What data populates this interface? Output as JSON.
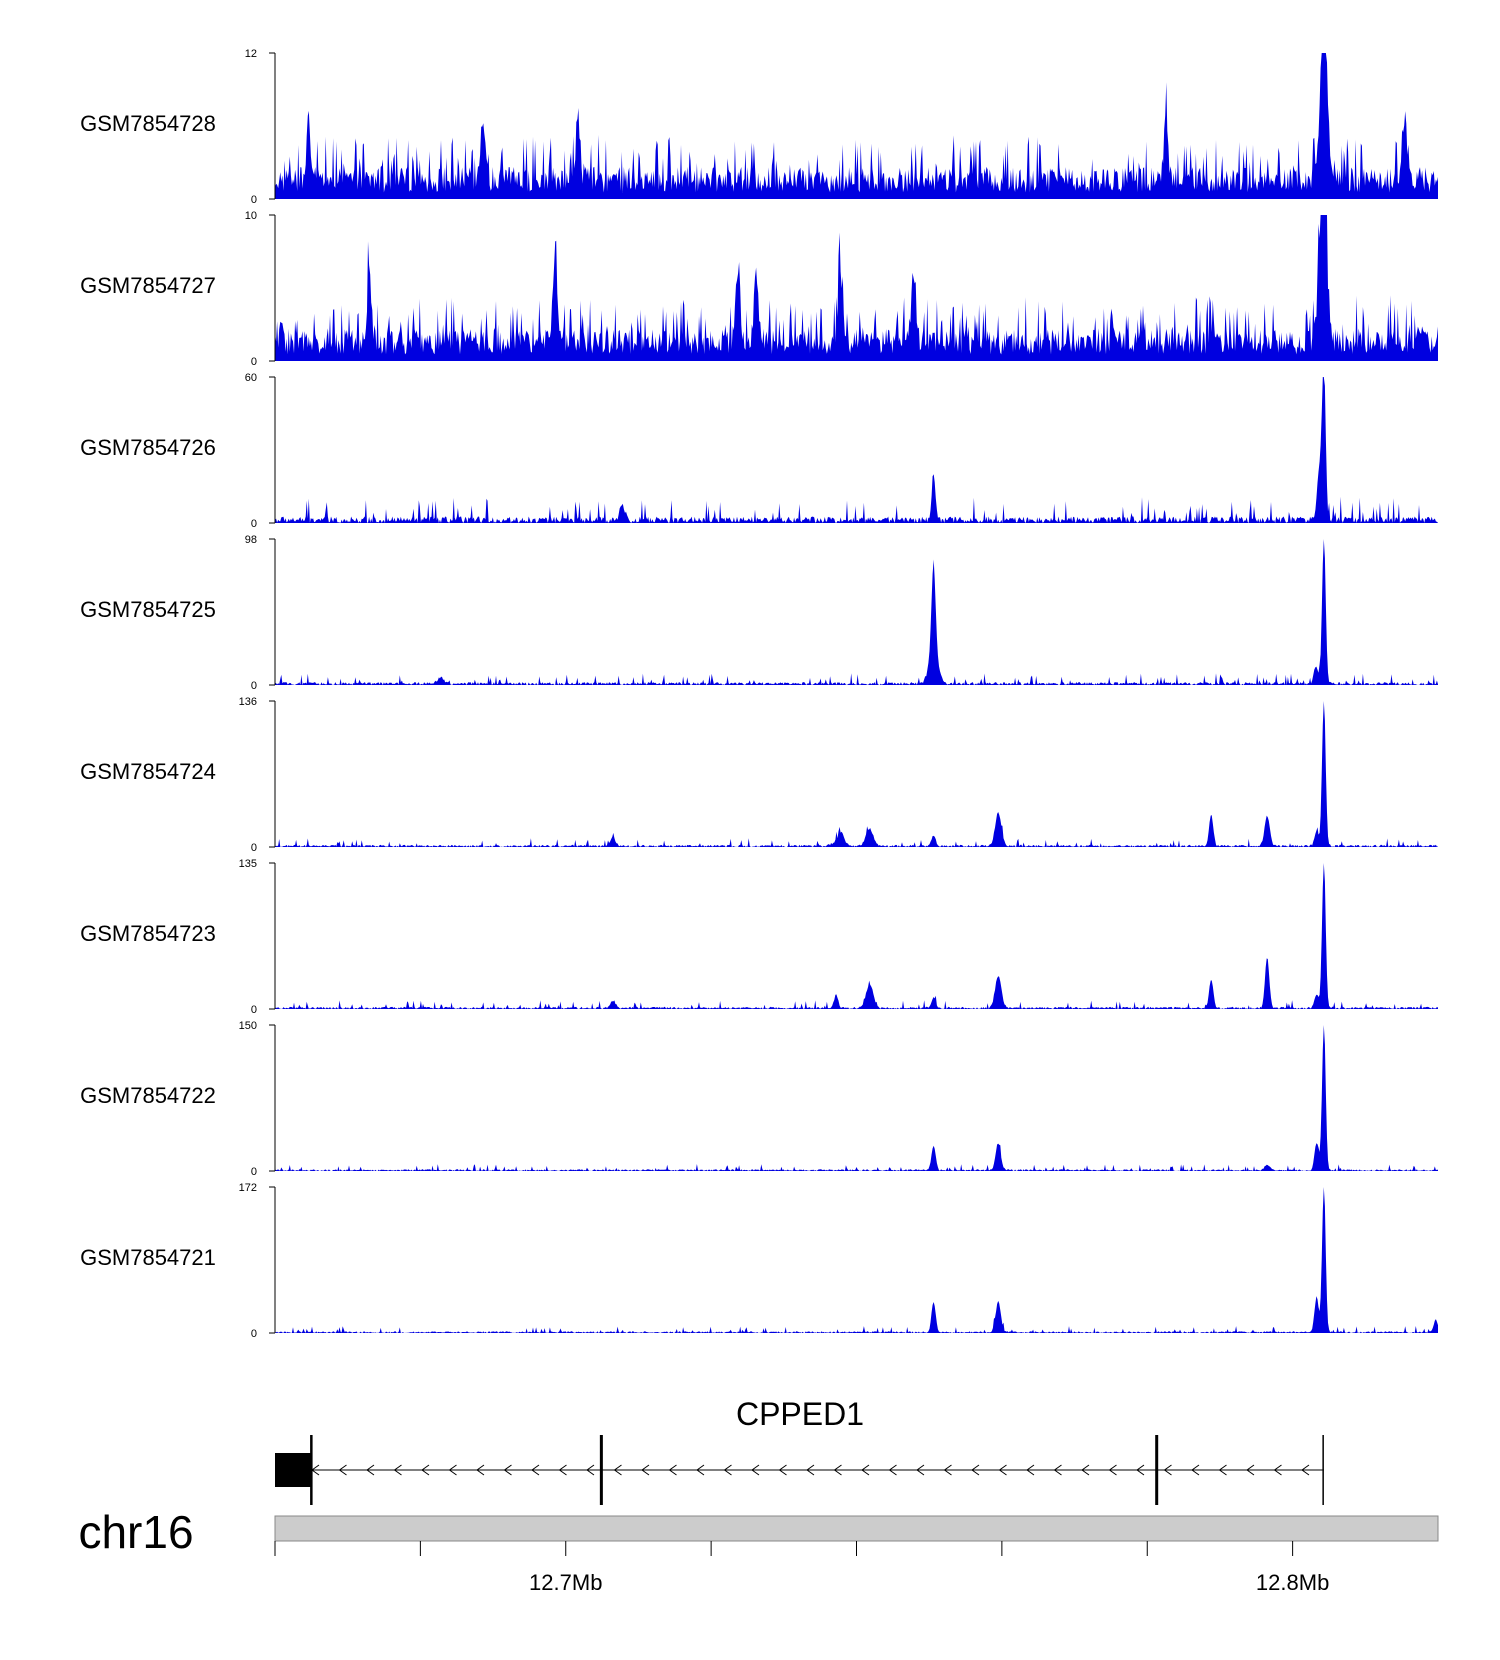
{
  "chart_data": {
    "type": "area",
    "region": {
      "chrom": "chr16",
      "start": 12.66,
      "end": 12.82,
      "unit": "Mb"
    },
    "x_ticks": [
      {
        "value": 12.66,
        "label": ""
      },
      {
        "value": 12.68,
        "label": ""
      },
      {
        "value": 12.7,
        "label": "12.7Mb"
      },
      {
        "value": 12.72,
        "label": ""
      },
      {
        "value": 12.74,
        "label": ""
      },
      {
        "value": 12.76,
        "label": ""
      },
      {
        "value": 12.78,
        "label": ""
      },
      {
        "value": 12.8,
        "label": "12.8Mb"
      }
    ],
    "color": "#0000e0",
    "tracks": [
      {
        "name": "GSM7854728",
        "ymax": 12,
        "ymin_label": "0",
        "ymax_label": "12",
        "noise": 0.22,
        "spiky": true,
        "peaks": [
          [
            12.8044,
            12.0,
            0.00045
          ],
          [
            12.8041,
            7.5,
            0.0007
          ],
          [
            12.6646,
            4.9,
            0.0004
          ],
          [
            12.6886,
            5.3,
            0.0004
          ],
          [
            12.7017,
            5.6,
            0.0004
          ],
          [
            12.7826,
            5.1,
            0.0004
          ],
          [
            12.8155,
            5.1,
            0.0004
          ]
        ]
      },
      {
        "name": "GSM7854727",
        "ymax": 10,
        "ymin_label": "0",
        "ymax_label": "10",
        "noise": 0.22,
        "spiky": true,
        "peaks": [
          [
            12.8043,
            10.0,
            0.00045
          ],
          [
            12.8041,
            7.7,
            0.0007
          ],
          [
            12.673,
            5.0,
            0.0004
          ],
          [
            12.6985,
            6.3,
            0.0004
          ],
          [
            12.7237,
            5.4,
            0.0004
          ],
          [
            12.7262,
            4.8,
            0.0004
          ],
          [
            12.7378,
            5.0,
            0.0004
          ],
          [
            12.7478,
            5.0,
            0.0004
          ]
        ]
      },
      {
        "name": "GSM7854726",
        "ymax": 60,
        "ymin_label": "0",
        "ymax_label": "60",
        "noise": 0.045,
        "spiky": false,
        "peaks": [
          [
            12.8043,
            60.0,
            0.00035
          ],
          [
            12.8037,
            20.0,
            0.0005
          ],
          [
            12.7506,
            20.0,
            0.00035
          ],
          [
            12.7078,
            6.5,
            0.0005
          ]
        ]
      },
      {
        "name": "GSM7854725",
        "ymax": 98,
        "ymin_label": "0",
        "ymax_label": "98",
        "noise": 0.02,
        "spiky": false,
        "peaks": [
          [
            12.8043,
            98.0,
            0.00035
          ],
          [
            12.8032,
            12.0,
            0.0004
          ],
          [
            12.7506,
            59.0,
            0.0004
          ],
          [
            12.7506,
            20.0,
            0.0009
          ],
          [
            12.6828,
            4.0,
            0.0006
          ]
        ]
      },
      {
        "name": "GSM7854724",
        "ymax": 136,
        "ymin_label": "0",
        "ymax_label": "136",
        "noise": 0.015,
        "spiky": false,
        "peaks": [
          [
            12.8043,
            136.0,
            0.00035
          ],
          [
            12.8033,
            14.0,
            0.0004
          ],
          [
            12.7965,
            28.0,
            0.0005
          ],
          [
            12.7888,
            29.0,
            0.0004
          ],
          [
            12.7595,
            31.0,
            0.0006
          ],
          [
            12.7418,
            16.0,
            0.0007
          ],
          [
            12.7506,
            10.0,
            0.0004
          ],
          [
            12.7065,
            8.0,
            0.0005
          ],
          [
            12.738,
            8.0,
            0.0005
          ],
          [
            12.7375,
            6.0,
            0.0009
          ]
        ]
      },
      {
        "name": "GSM7854723",
        "ymax": 135,
        "ymin_label": "0",
        "ymax_label": "135",
        "noise": 0.015,
        "spiky": false,
        "peaks": [
          [
            12.8043,
            135.0,
            0.00035
          ],
          [
            12.8033,
            12.0,
            0.0004
          ],
          [
            12.7965,
            48.0,
            0.0004
          ],
          [
            12.7888,
            26.0,
            0.0004
          ],
          [
            12.7595,
            30.0,
            0.0006
          ],
          [
            12.7418,
            22.0,
            0.0007
          ],
          [
            12.7506,
            10.0,
            0.0004
          ],
          [
            12.7372,
            12.0,
            0.0004
          ],
          [
            12.7065,
            7.0,
            0.0005
          ]
        ]
      },
      {
        "name": "GSM7854722",
        "ymax": 150,
        "ymin_label": "0",
        "ymax_label": "150",
        "noise": 0.012,
        "spiky": false,
        "peaks": [
          [
            12.8043,
            150.0,
            0.00035
          ],
          [
            12.8033,
            28.0,
            0.0004
          ],
          [
            12.7595,
            28.0,
            0.0005
          ],
          [
            12.7506,
            25.0,
            0.0004
          ],
          [
            12.7965,
            5.0,
            0.0005
          ]
        ]
      },
      {
        "name": "GSM7854721",
        "ymax": 172,
        "ymin_label": "0",
        "ymax_label": "172",
        "noise": 0.012,
        "spiky": false,
        "peaks": [
          [
            12.8043,
            172.0,
            0.00035
          ],
          [
            12.8033,
            42.0,
            0.0004
          ],
          [
            12.7595,
            36.0,
            0.0005
          ],
          [
            12.7506,
            36.0,
            0.0004
          ],
          [
            12.8197,
            15.0,
            0.0004
          ]
        ]
      }
    ],
    "gene": {
      "name": "CPPED1",
      "strand": "-",
      "tx_start": 12.66,
      "tx_end": 12.8043,
      "exons": [
        [
          12.66,
          12.665
        ],
        [
          12.7047,
          12.7051
        ],
        [
          12.7811,
          12.7815
        ],
        [
          12.8041,
          12.8043
        ]
      ]
    }
  }
}
